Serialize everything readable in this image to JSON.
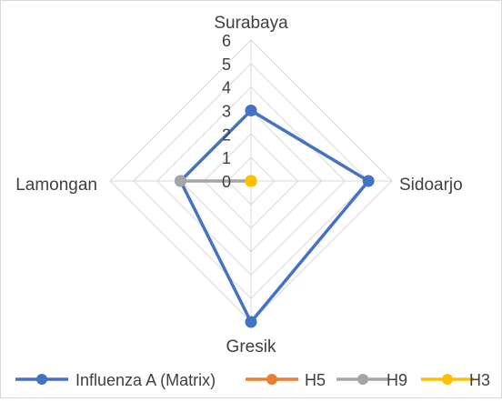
{
  "chart_data": {
    "type": "radar",
    "categories": [
      "Surabaya",
      "Sidoarjo",
      "Gresik",
      "Lamongan"
    ],
    "rlim": [
      0,
      6
    ],
    "ticks": [
      0,
      1,
      2,
      3,
      4,
      5,
      6
    ],
    "grid": true,
    "legend_position": "bottom",
    "series": [
      {
        "name": "Influenza A (Matrix)",
        "values": [
          3,
          5,
          6,
          3
        ],
        "color": "#4472C4"
      },
      {
        "name": "H5",
        "values": [
          0,
          0,
          0,
          0
        ],
        "color": "#ED7D31"
      },
      {
        "name": "H9",
        "values": [
          0,
          0,
          0,
          3
        ],
        "color": "#A5A5A5"
      },
      {
        "name": "H3",
        "values": [
          0,
          0,
          0,
          0
        ],
        "color": "#FFC000"
      }
    ]
  }
}
